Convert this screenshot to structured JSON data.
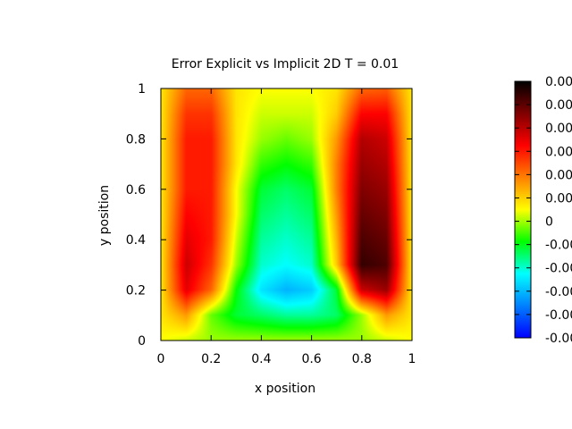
{
  "chart_data": {
    "type": "heatmap",
    "title": "Error Explicit vs Implicit 2D T = 0.01",
    "xlabel": "x position",
    "ylabel": "y position",
    "xlim": [
      0,
      1
    ],
    "ylim": [
      0,
      1
    ],
    "x_ticks": [
      "0",
      "0.2",
      "0.4",
      "0.6",
      "0.8",
      "1"
    ],
    "y_ticks": [
      "0",
      "0.2",
      "0.4",
      "0.6",
      "0.8",
      "1"
    ],
    "colorbar_ticks": [
      "0.00",
      "0.00",
      "0.00",
      "0.00",
      "0.00",
      "0.00",
      "0",
      "-0.00",
      "-0.00",
      "-0.00",
      "-0.00",
      "-0.00"
    ],
    "colorbar_range": [
      -1,
      1
    ],
    "colormap": [
      "#0000ff",
      "#0080ff",
      "#00ffff",
      "#00ff00",
      "#ffff00",
      "#ff8000",
      "#ff0000",
      "#800000",
      "#000000"
    ],
    "grid": false,
    "field": {
      "description_of_regions": "positive ridges near x=0.15 and x=0.85, negative trough centered near x=0.55, y=0.2",
      "rows_y_from_top": 11,
      "cols_x": 11,
      "values": [
        [
          0.05,
          0.3,
          0.3,
          0.05,
          0.0,
          0.0,
          0.0,
          0.05,
          0.3,
          0.32,
          0.05
        ],
        [
          0.05,
          0.4,
          0.4,
          0.05,
          -0.05,
          -0.05,
          -0.05,
          0.1,
          0.5,
          0.5,
          0.05
        ],
        [
          0.05,
          0.45,
          0.45,
          0.05,
          -0.1,
          -0.15,
          -0.1,
          0.2,
          0.65,
          0.6,
          0.05
        ],
        [
          0.05,
          0.45,
          0.45,
          0.05,
          -0.2,
          -0.25,
          -0.2,
          0.25,
          0.7,
          0.65,
          0.05
        ],
        [
          0.05,
          0.45,
          0.45,
          0.0,
          -0.3,
          -0.35,
          -0.3,
          0.25,
          0.75,
          0.7,
          0.05
        ],
        [
          0.05,
          0.5,
          0.45,
          0.0,
          -0.35,
          -0.4,
          -0.35,
          0.2,
          0.8,
          0.75,
          0.05
        ],
        [
          0.05,
          0.55,
          0.45,
          -0.05,
          -0.4,
          -0.45,
          -0.4,
          0.15,
          0.85,
          0.8,
          0.05
        ],
        [
          0.05,
          0.6,
          0.4,
          -0.1,
          -0.45,
          -0.5,
          -0.45,
          0.1,
          0.9,
          0.85,
          0.05
        ],
        [
          0.05,
          0.55,
          0.3,
          -0.25,
          -0.55,
          -0.65,
          -0.6,
          -0.3,
          0.6,
          0.7,
          0.05
        ],
        [
          0.05,
          0.2,
          -0.15,
          -0.3,
          -0.35,
          -0.4,
          -0.4,
          -0.35,
          -0.1,
          0.2,
          0.05
        ],
        [
          0.0,
          -0.05,
          -0.1,
          -0.1,
          -0.1,
          -0.1,
          -0.1,
          -0.1,
          -0.1,
          -0.05,
          0.0
        ]
      ]
    }
  }
}
